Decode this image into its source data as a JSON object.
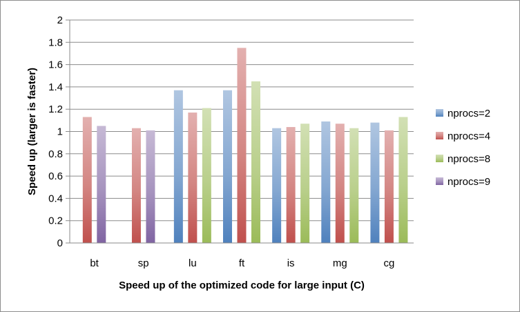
{
  "chart_data": {
    "type": "bar",
    "xlabel": "Speed up of the optimized code for large input (C)",
    "ylabel": "Speed up (larger is faster)",
    "ylim": [
      0,
      2
    ],
    "yticks": [
      "0",
      "0.2",
      "0.4",
      "0.6",
      "0.8",
      "1",
      "1.2",
      "1.4",
      "1.6",
      "1.8",
      "2"
    ],
    "grid": true,
    "legend_position": "right",
    "categories": [
      "bt",
      "sp",
      "lu",
      "ft",
      "is",
      "mg",
      "cg"
    ],
    "series": [
      {
        "name": "nprocs=2",
        "color": "#4f81bd",
        "values": [
          null,
          null,
          1.37,
          1.37,
          1.03,
          1.09,
          1.08
        ]
      },
      {
        "name": "nprocs=4",
        "color": "#c0504d",
        "values": [
          1.13,
          1.03,
          1.17,
          1.75,
          1.04,
          1.07,
          1.01
        ]
      },
      {
        "name": "nprocs=8",
        "color": "#9bbb59",
        "values": [
          null,
          null,
          1.21,
          1.45,
          1.07,
          1.03,
          1.13
        ]
      },
      {
        "name": "nprocs=9",
        "color": "#8064a2",
        "values": [
          1.05,
          1.01,
          null,
          null,
          null,
          null,
          null
        ]
      }
    ]
  }
}
